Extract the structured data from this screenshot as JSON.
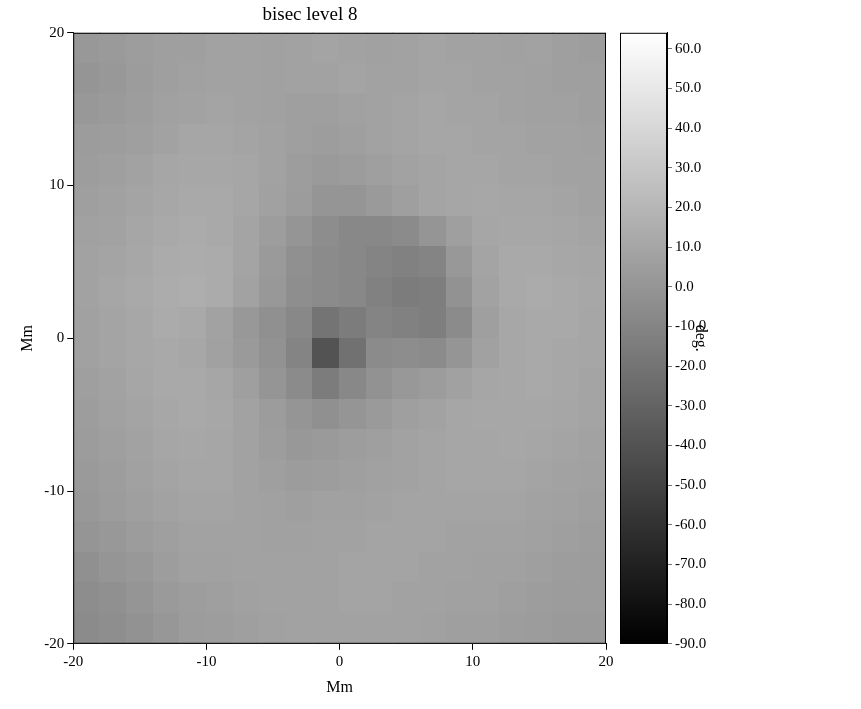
{
  "chart_data": {
    "type": "heatmap",
    "title": "bisec level 8",
    "x_label": "Mm",
    "y_label": "Mm",
    "xlim": [
      -20,
      20
    ],
    "ylim": [
      -20,
      20
    ],
    "xticks": [
      -20,
      -10,
      0,
      10,
      20
    ],
    "yticks": [
      -20,
      -10,
      0,
      10,
      20
    ],
    "grid": false,
    "x": [
      -19,
      -17,
      -15,
      -13,
      -11,
      -9,
      -7,
      -5,
      -3,
      -1,
      1,
      3,
      5,
      7,
      9,
      11,
      13,
      15,
      17,
      19
    ],
    "y": [
      19,
      17,
      15,
      13,
      11,
      9,
      7,
      5,
      3,
      1,
      -1,
      -3,
      -5,
      -7,
      -9,
      -11,
      -13,
      -15,
      -17,
      -19
    ],
    "cells": [
      [
        2,
        3,
        5,
        6,
        6,
        8,
        8,
        7,
        8,
        9,
        8,
        7,
        8,
        9,
        8,
        8,
        7,
        8,
        6,
        5
      ],
      [
        0,
        2,
        4,
        6,
        7,
        8,
        8,
        7,
        8,
        8,
        9,
        8,
        8,
        9,
        9,
        8,
        8,
        7,
        6,
        6
      ],
      [
        2,
        3,
        5,
        7,
        8,
        9,
        8,
        7,
        6,
        6,
        7,
        8,
        9,
        10,
        9,
        9,
        8,
        7,
        7,
        6
      ],
      [
        4,
        5,
        6,
        8,
        10,
        10,
        9,
        8,
        6,
        5,
        6,
        8,
        9,
        10,
        10,
        9,
        9,
        8,
        8,
        7
      ],
      [
        5,
        6,
        8,
        10,
        11,
        11,
        10,
        8,
        5,
        3,
        4,
        6,
        8,
        9,
        10,
        10,
        9,
        9,
        8,
        8
      ],
      [
        6,
        7,
        9,
        11,
        12,
        12,
        10,
        7,
        4,
        0,
        0,
        3,
        6,
        9,
        10,
        11,
        10,
        10,
        9,
        8
      ],
      [
        7,
        8,
        10,
        12,
        13,
        12,
        9,
        5,
        0,
        -5,
        -8,
        -8,
        -6,
        0,
        6,
        10,
        11,
        11,
        10,
        9
      ],
      [
        8,
        9,
        11,
        13,
        14,
        13,
        9,
        3,
        -3,
        -6,
        -8,
        -10,
        -12,
        -10,
        2,
        9,
        12,
        12,
        11,
        10
      ],
      [
        8,
        10,
        12,
        14,
        15,
        13,
        8,
        2,
        -4,
        -6,
        -8,
        -12,
        -15,
        -14,
        -2,
        8,
        12,
        13,
        12,
        11
      ],
      [
        7,
        9,
        11,
        13,
        12,
        8,
        2,
        -3,
        -8,
        -20,
        -15,
        -10,
        -12,
        -14,
        -6,
        6,
        11,
        12,
        12,
        10
      ],
      [
        7,
        9,
        11,
        12,
        11,
        7,
        3,
        -2,
        -10,
        -40,
        -22,
        -6,
        -5,
        -6,
        0,
        7,
        11,
        12,
        11,
        10
      ],
      [
        6,
        8,
        10,
        12,
        12,
        10,
        6,
        0,
        -6,
        -15,
        -8,
        -2,
        2,
        4,
        7,
        10,
        11,
        12,
        11,
        9
      ],
      [
        5,
        7,
        9,
        11,
        12,
        11,
        8,
        4,
        0,
        -3,
        0,
        3,
        6,
        8,
        10,
        11,
        11,
        11,
        10,
        9
      ],
      [
        4,
        6,
        8,
        10,
        11,
        10,
        8,
        5,
        2,
        3,
        5,
        6,
        8,
        9,
        10,
        10,
        11,
        10,
        9,
        8
      ],
      [
        3,
        5,
        7,
        9,
        10,
        10,
        8,
        6,
        4,
        5,
        6,
        7,
        8,
        9,
        10,
        10,
        10,
        9,
        8,
        7
      ],
      [
        2,
        4,
        6,
        8,
        9,
        9,
        8,
        7,
        6,
        7,
        7,
        8,
        9,
        9,
        9,
        9,
        9,
        8,
        7,
        6
      ],
      [
        0,
        2,
        4,
        6,
        8,
        8,
        8,
        7,
        7,
        8,
        8,
        9,
        9,
        9,
        8,
        8,
        8,
        7,
        6,
        5
      ],
      [
        -3,
        0,
        2,
        5,
        7,
        7,
        8,
        8,
        8,
        8,
        9,
        9,
        9,
        8,
        8,
        7,
        7,
        6,
        5,
        4
      ],
      [
        -5,
        -3,
        0,
        3,
        5,
        6,
        7,
        8,
        8,
        8,
        9,
        9,
        8,
        8,
        7,
        7,
        6,
        5,
        4,
        4
      ],
      [
        -6,
        -4,
        -2,
        1,
        4,
        5,
        6,
        7,
        8,
        8,
        8,
        8,
        8,
        7,
        6,
        6,
        5,
        4,
        3,
        3
      ]
    ],
    "colorbar": {
      "label": "deg.",
      "range": [
        -90,
        64
      ],
      "ticks": [
        {
          "value": -90,
          "label": "-90.0"
        },
        {
          "value": -80,
          "label": "-80.0"
        },
        {
          "value": -70,
          "label": "-70.0"
        },
        {
          "value": -60,
          "label": "-60.0"
        },
        {
          "value": -50,
          "label": "-50.0"
        },
        {
          "value": -40,
          "label": "-40.0"
        },
        {
          "value": -30,
          "label": "-30.0"
        },
        {
          "value": -20,
          "label": "-20.0"
        },
        {
          "value": -10,
          "label": "-10.0"
        },
        {
          "value": 0,
          "label": "0.0"
        },
        {
          "value": 10,
          "label": "10.0"
        },
        {
          "value": 20,
          "label": "20.0"
        },
        {
          "value": 30,
          "label": "30.0"
        },
        {
          "value": 40,
          "label": "40.0"
        },
        {
          "value": 50,
          "label": "50.0"
        },
        {
          "value": 60,
          "label": "60.0"
        }
      ]
    }
  }
}
